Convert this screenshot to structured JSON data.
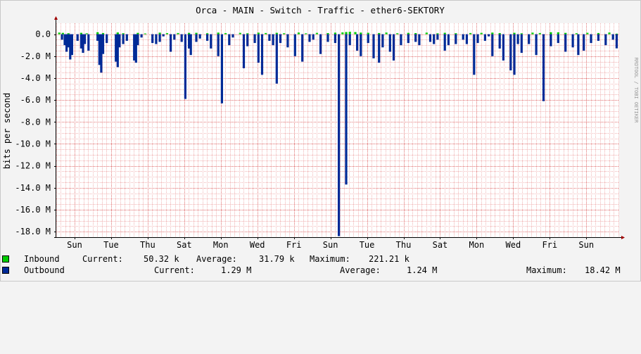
{
  "colors": {
    "background": "#f3f3f3",
    "canvas": "#ffffff",
    "grid_minor": "#f0b4b4",
    "grid_major": "#e07070",
    "inbound": "#00cc00",
    "outbound": "#002a97",
    "axis": "#000000",
    "frame": "#c8c8c8"
  },
  "chart_data": {
    "type": "area",
    "title": "Orca - MAIN - Switch - Traffic - ether6-SEKTORY",
    "ylabel": "bits per second",
    "watermark": "RRDTOOL / TOBI OETIKER",
    "ylim": [
      -18500000,
      1000000
    ],
    "y_ticks": [
      {
        "value": 0,
        "label": "0.0"
      },
      {
        "value": -2000000,
        "label": "-2.0 M"
      },
      {
        "value": -4000000,
        "label": "-4.0 M"
      },
      {
        "value": -6000000,
        "label": "-6.0 M"
      },
      {
        "value": -8000000,
        "label": "-8.0 M"
      },
      {
        "value": -10000000,
        "label": "-10.0 M"
      },
      {
        "value": -12000000,
        "label": "-12.0 M"
      },
      {
        "value": -14000000,
        "label": "-14.0 M"
      },
      {
        "value": -16000000,
        "label": "-16.0 M"
      },
      {
        "value": -18000000,
        "label": "-18.0 M"
      }
    ],
    "x_range_days": [
      0,
      30.8
    ],
    "x_ticks": [
      {
        "day": 1,
        "label": "Sun"
      },
      {
        "day": 3,
        "label": "Tue"
      },
      {
        "day": 5,
        "label": "Thu"
      },
      {
        "day": 7,
        "label": "Sat"
      },
      {
        "day": 9,
        "label": "Mon"
      },
      {
        "day": 11,
        "label": "Wed"
      },
      {
        "day": 13,
        "label": "Fri"
      },
      {
        "day": 15,
        "label": "Sun"
      },
      {
        "day": 17,
        "label": "Tue"
      },
      {
        "day": 19,
        "label": "Thu"
      },
      {
        "day": 21,
        "label": "Sat"
      },
      {
        "day": 23,
        "label": "Mon"
      },
      {
        "day": 25,
        "label": "Wed"
      },
      {
        "day": 27,
        "label": "Fri"
      },
      {
        "day": 29,
        "label": "Sun"
      }
    ],
    "series": [
      {
        "name": "Inbound",
        "note": "plotted upward; values in bits per second",
        "x_days": [
          0.1,
          0.3,
          0.6,
          1.3,
          1.6,
          2.2,
          2.5,
          3.3,
          3.6,
          4.4,
          4.8,
          5.6,
          6.0,
          6.6,
          7.2,
          7.6,
          8.2,
          8.8,
          9.2,
          10.0,
          10.4,
          11.0,
          11.4,
          12.0,
          12.4,
          13.2,
          13.6,
          14.2,
          14.8,
          15.2,
          15.6,
          15.8,
          16.0,
          16.3,
          16.6,
          17.0,
          17.6,
          18.0,
          18.6,
          19.2,
          19.6,
          20.2,
          20.8,
          21.2,
          21.8,
          22.6,
          23.2,
          23.8,
          24.2,
          25.0,
          25.4,
          26.0,
          26.4,
          27.0,
          27.4,
          27.8,
          28.4,
          29.0,
          29.6,
          30.2,
          30.6
        ],
        "values": [
          150000,
          120000,
          90000,
          130000,
          80000,
          180000,
          110000,
          160000,
          90000,
          120000,
          70000,
          140000,
          100000,
          110000,
          120000,
          130000,
          90000,
          150000,
          100000,
          120000,
          80000,
          140000,
          110000,
          130000,
          90000,
          150000,
          80000,
          120000,
          100000,
          140000,
          160000,
          200000,
          221210,
          190000,
          150000,
          130000,
          110000,
          150000,
          90000,
          120000,
          100000,
          140000,
          80000,
          130000,
          90000,
          110000,
          120000,
          150000,
          100000,
          130000,
          80000,
          140000,
          110000,
          180000,
          170000,
          120000,
          90000,
          130000,
          110000,
          150000,
          50320
        ]
      },
      {
        "name": "Outbound",
        "note": "plotted downward; values in bits per second",
        "x_days": [
          0.25,
          0.4,
          0.5,
          0.6,
          0.7,
          0.8,
          1.1,
          1.3,
          1.4,
          1.5,
          1.7,
          2.2,
          2.3,
          2.4,
          2.5,
          2.7,
          3.2,
          3.3,
          3.4,
          3.6,
          3.8,
          4.2,
          4.3,
          4.4,
          4.6,
          5.2,
          5.4,
          5.6,
          5.8,
          6.2,
          6.4,
          6.8,
          7.0,
          7.2,
          7.3,
          7.6,
          7.8,
          8.2,
          8.4,
          8.8,
          9.0,
          9.4,
          9.6,
          10.2,
          10.4,
          10.8,
          11.0,
          11.2,
          11.6,
          11.8,
          12.0,
          12.2,
          12.6,
          13.0,
          13.4,
          13.8,
          14.0,
          14.4,
          14.8,
          15.2,
          15.4,
          15.8,
          16.0,
          16.4,
          16.6,
          17.0,
          17.3,
          17.6,
          17.8,
          18.2,
          18.4,
          18.8,
          19.2,
          19.6,
          19.8,
          20.4,
          20.6,
          20.8,
          21.2,
          21.4,
          21.8,
          22.2,
          22.4,
          22.8,
          23.0,
          23.4,
          23.6,
          23.8,
          24.2,
          24.4,
          24.8,
          25.0,
          25.2,
          25.4,
          25.8,
          26.2,
          26.6,
          27.0,
          27.4,
          27.8,
          28.2,
          28.5,
          28.8,
          29.2,
          29.6,
          30.0,
          30.4,
          30.6
        ],
        "values": [
          -500000,
          -1000000,
          -1600000,
          -1200000,
          -2300000,
          -1900000,
          -600000,
          -1300000,
          -1700000,
          -900000,
          -1500000,
          -600000,
          -2800000,
          -3500000,
          -1800000,
          -800000,
          -2500000,
          -3000000,
          -1200000,
          -900000,
          -600000,
          -2400000,
          -2600000,
          -1000000,
          -300000,
          -800000,
          -900000,
          -700000,
          -200000,
          -1600000,
          -500000,
          -700000,
          -5900000,
          -1300000,
          -1900000,
          -700000,
          -400000,
          -600000,
          -1300000,
          -2000000,
          -6300000,
          -1000000,
          -300000,
          -3100000,
          -1100000,
          -800000,
          -2600000,
          -3700000,
          -600000,
          -1000000,
          -4500000,
          -800000,
          -1200000,
          -2000000,
          -2500000,
          -700000,
          -500000,
          -1800000,
          -700000,
          -800000,
          -18400000,
          -13700000,
          -1000000,
          -1500000,
          -2000000,
          -800000,
          -2200000,
          -2600000,
          -1200000,
          -1600000,
          -2400000,
          -1000000,
          -800000,
          -700000,
          -1000000,
          -700000,
          -900000,
          -500000,
          -1500000,
          -1000000,
          -900000,
          -500000,
          -900000,
          -3700000,
          -800000,
          -600000,
          -200000,
          -2000000,
          -1300000,
          -2400000,
          -3300000,
          -3700000,
          -900000,
          -1700000,
          -900000,
          -1900000,
          -6100000,
          -1100000,
          -800000,
          -1600000,
          -1200000,
          -1900000,
          -1500000,
          -800000,
          -600000,
          -1000000,
          -500000,
          -1290000
        ]
      }
    ]
  },
  "legend": {
    "inbound": {
      "label": "Inbound",
      "current_label": "Current:",
      "current": "50.32 k",
      "average_label": "Average:",
      "average": "31.79 k",
      "maximum_label": "Maximum:",
      "maximum": "221.21 k"
    },
    "outbound": {
      "label": "Outbound",
      "current_label": "Current:",
      "current": "1.29 M",
      "average_label": "Average:",
      "average": "1.24 M",
      "maximum_label": "Maximum:",
      "maximum": "18.42 M"
    }
  }
}
